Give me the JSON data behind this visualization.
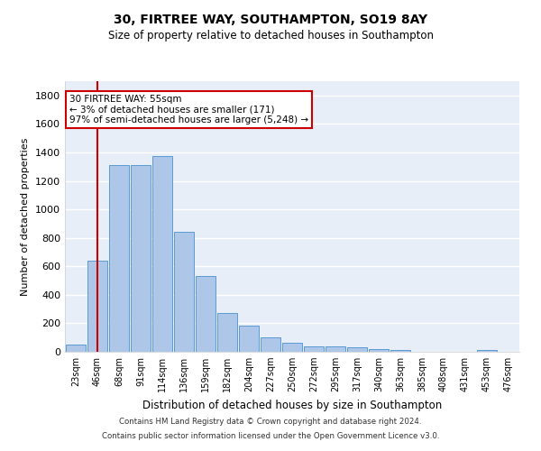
{
  "title1": "30, FIRTREE WAY, SOUTHAMPTON, SO19 8AY",
  "title2": "Size of property relative to detached houses in Southampton",
  "xlabel": "Distribution of detached houses by size in Southampton",
  "ylabel": "Number of detached properties",
  "bar_color": "#aec6e8",
  "bar_edge_color": "#5b9bd5",
  "background_color": "#e8eef8",
  "grid_color": "#ffffff",
  "categories": [
    "23sqm",
    "46sqm",
    "68sqm",
    "91sqm",
    "114sqm",
    "136sqm",
    "159sqm",
    "182sqm",
    "204sqm",
    "227sqm",
    "250sqm",
    "272sqm",
    "295sqm",
    "317sqm",
    "340sqm",
    "363sqm",
    "385sqm",
    "408sqm",
    "431sqm",
    "453sqm",
    "476sqm"
  ],
  "values": [
    50,
    640,
    1310,
    1310,
    1375,
    845,
    530,
    275,
    185,
    100,
    65,
    35,
    35,
    30,
    20,
    15,
    0,
    0,
    0,
    15,
    0
  ],
  "ylim": [
    0,
    1900
  ],
  "yticks": [
    0,
    200,
    400,
    600,
    800,
    1000,
    1200,
    1400,
    1600,
    1800
  ],
  "vline_x": 1,
  "annotation_text": "30 FIRTREE WAY: 55sqm\n← 3% of detached houses are smaller (171)\n97% of semi-detached houses are larger (5,248) →",
  "annotation_box_color": "#ffffff",
  "annotation_box_edge": "#cc0000",
  "vline_color": "#cc0000",
  "footer1": "Contains HM Land Registry data © Crown copyright and database right 2024.",
  "footer2": "Contains public sector information licensed under the Open Government Licence v3.0.",
  "fig_bg": "#ffffff"
}
